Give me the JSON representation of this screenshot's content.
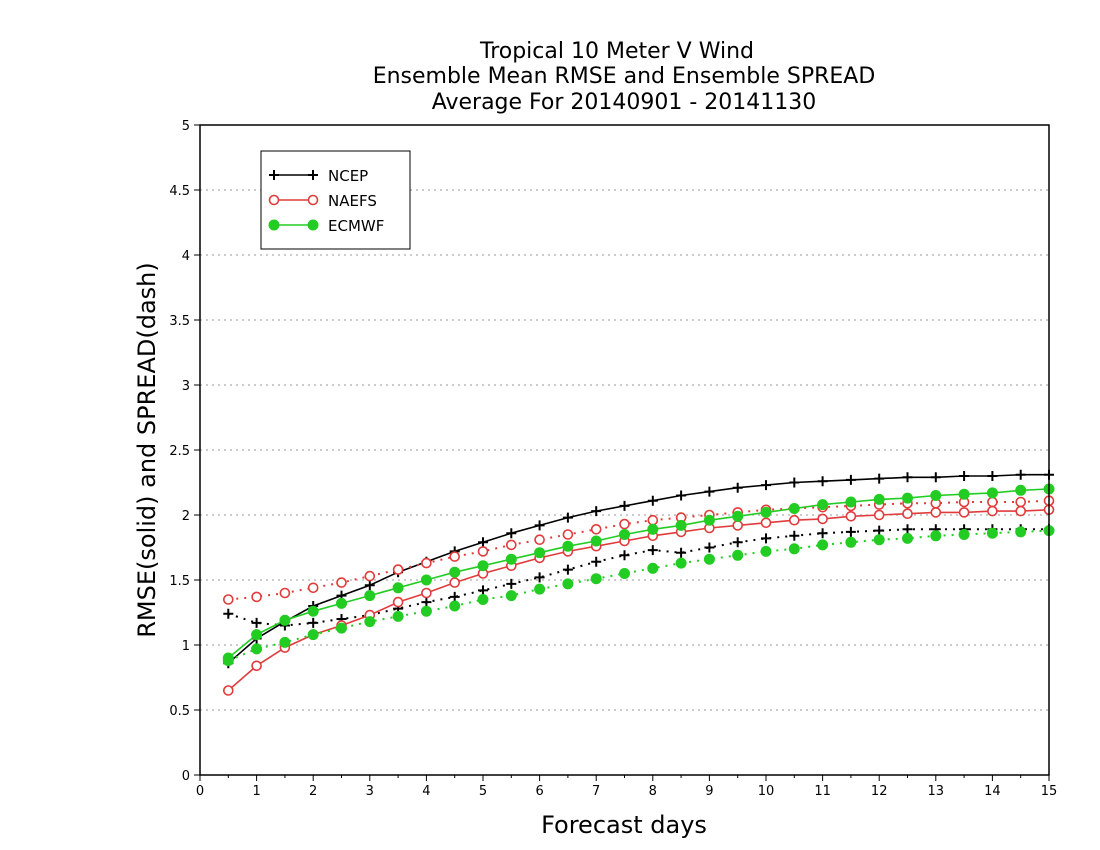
{
  "chart_data": {
    "type": "line",
    "title_lines": [
      "Tropical 10 Meter V Wind",
      "Ensemble Mean RMSE and Ensemble SPREAD",
      "Average For 20140901 - 20141130"
    ],
    "xlabel": "Forecast days",
    "ylabel": "RMSE(solid) and SPREAD(dash)",
    "xlim": [
      0,
      15
    ],
    "ylim": [
      0,
      5
    ],
    "x_ticks": [
      "0",
      "1",
      "2",
      "3",
      "4",
      "5",
      "6",
      "7",
      "8",
      "9",
      "10",
      "11",
      "12",
      "13",
      "14",
      "15"
    ],
    "y_ticks": [
      "0",
      "0.5",
      "1",
      "1.5",
      "2",
      "2.5",
      "3",
      "3.5",
      "4",
      "4.5",
      "5"
    ],
    "grid": "horizontal dotted",
    "legend_position": "top-left",
    "x": [
      0.5,
      1,
      1.5,
      2,
      2.5,
      3,
      3.5,
      4,
      4.5,
      5,
      5.5,
      6,
      6.5,
      7,
      7.5,
      8,
      8.5,
      9,
      9.5,
      10,
      10.5,
      11,
      11.5,
      12,
      12.5,
      13,
      13.5,
      14,
      14.5,
      15
    ],
    "series": [
      {
        "name": "NCEP",
        "color": "#000000",
        "marker": "plus",
        "rmse": [
          0.86,
          1.05,
          1.18,
          1.3,
          1.38,
          1.46,
          1.56,
          1.64,
          1.72,
          1.79,
          1.86,
          1.92,
          1.98,
          2.03,
          2.07,
          2.11,
          2.15,
          2.18,
          2.21,
          2.23,
          2.25,
          2.26,
          2.27,
          2.28,
          2.29,
          2.29,
          2.3,
          2.3,
          2.31,
          2.31
        ],
        "spread": [
          1.24,
          1.17,
          1.15,
          1.17,
          1.2,
          1.23,
          1.28,
          1.33,
          1.37,
          1.42,
          1.47,
          1.52,
          1.58,
          1.64,
          1.69,
          1.73,
          1.71,
          1.75,
          1.79,
          1.82,
          1.84,
          1.86,
          1.87,
          1.88,
          1.89,
          1.89,
          1.89,
          1.89,
          1.89,
          1.89
        ]
      },
      {
        "name": "NAEFS",
        "color": "#e03c3c",
        "marker": "open-circle",
        "rmse": [
          0.65,
          0.84,
          0.98,
          1.08,
          1.15,
          1.23,
          1.33,
          1.4,
          1.48,
          1.55,
          1.61,
          1.67,
          1.72,
          1.76,
          1.8,
          1.84,
          1.87,
          1.9,
          1.92,
          1.94,
          1.96,
          1.97,
          1.99,
          2.0,
          2.01,
          2.02,
          2.02,
          2.03,
          2.03,
          2.04
        ],
        "spread": [
          1.35,
          1.37,
          1.4,
          1.44,
          1.48,
          1.53,
          1.58,
          1.63,
          1.68,
          1.72,
          1.77,
          1.81,
          1.85,
          1.89,
          1.93,
          1.96,
          1.98,
          2.0,
          2.02,
          2.04,
          2.05,
          2.06,
          2.07,
          2.08,
          2.09,
          2.09,
          2.1,
          2.1,
          2.1,
          2.11
        ]
      },
      {
        "name": "ECMWF",
        "color": "#22cc22",
        "marker": "filled-circle",
        "rmse": [
          0.9,
          1.08,
          1.19,
          1.26,
          1.32,
          1.38,
          1.44,
          1.5,
          1.56,
          1.61,
          1.66,
          1.71,
          1.76,
          1.8,
          1.85,
          1.89,
          1.92,
          1.96,
          1.99,
          2.02,
          2.05,
          2.08,
          2.1,
          2.12,
          2.13,
          2.15,
          2.16,
          2.17,
          2.19,
          2.2
        ],
        "spread": [
          0.88,
          0.97,
          1.02,
          1.08,
          1.13,
          1.18,
          1.22,
          1.26,
          1.3,
          1.35,
          1.38,
          1.43,
          1.47,
          1.51,
          1.55,
          1.59,
          1.63,
          1.66,
          1.69,
          1.72,
          1.74,
          1.77,
          1.79,
          1.81,
          1.82,
          1.84,
          1.85,
          1.86,
          1.87,
          1.88
        ]
      }
    ]
  }
}
